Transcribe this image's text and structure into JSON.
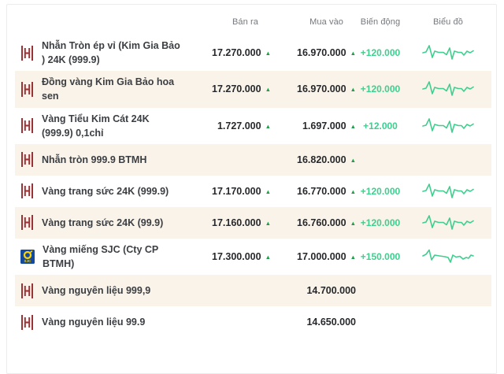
{
  "table": {
    "columns": {
      "sell": "Bán ra",
      "buy": "Mua vào",
      "change": "Biến động",
      "chart": "Biểu đồ"
    },
    "up_arrow": "▲",
    "rows": [
      {
        "name": "Nhẫn Tròn ép vỉ (Kim Gia Bảo ) 24K (999.9)",
        "icon": "btmh",
        "sell": "17.270.000",
        "sell_up": true,
        "buy": "16.970.000",
        "buy_up": true,
        "change": "+120.000",
        "chart": true,
        "chart_variant": "v1"
      },
      {
        "name": "Đồng vàng Kim Gia Bảo hoa sen",
        "icon": "btmh",
        "sell": "17.270.000",
        "sell_up": true,
        "buy": "16.970.000",
        "buy_up": true,
        "change": "+120.000",
        "chart": true,
        "chart_variant": "v1"
      },
      {
        "name": "Vàng Tiểu Kim Cát 24K (999.9) 0,1chỉ",
        "icon": "btmh",
        "sell": "1.727.000",
        "sell_up": true,
        "buy": "1.697.000",
        "buy_up": true,
        "change": "+12.000",
        "chart": true,
        "chart_variant": "v1"
      },
      {
        "name": "Nhẫn tròn 999.9 BTMH",
        "icon": "btmh",
        "sell": "",
        "sell_up": false,
        "buy": "16.820.000",
        "buy_up": true,
        "change": "",
        "chart": false,
        "chart_variant": ""
      },
      {
        "name": "Vàng trang sức 24K (999.9)",
        "icon": "btmh",
        "sell": "17.170.000",
        "sell_up": true,
        "buy": "16.770.000",
        "buy_up": true,
        "change": "+120.000",
        "chart": true,
        "chart_variant": "v1"
      },
      {
        "name": "Vàng trang sức 24K (99.9)",
        "icon": "btmh",
        "sell": "17.160.000",
        "sell_up": true,
        "buy": "16.760.000",
        "buy_up": true,
        "change": "+120.000",
        "chart": true,
        "chart_variant": "v1"
      },
      {
        "name": "Vàng miếng SJC (Cty CP BTMH)",
        "icon": "sjc",
        "sell": "17.300.000",
        "sell_up": true,
        "buy": "17.000.000",
        "buy_up": true,
        "change": "+150.000",
        "chart": true,
        "chart_variant": "v2"
      },
      {
        "name": "Vàng nguyên liệu 999,9",
        "icon": "btmh",
        "sell": "",
        "sell_up": false,
        "buy": "14.700.000",
        "buy_up": false,
        "change": "",
        "chart": false,
        "chart_variant": ""
      },
      {
        "name": "Vàng nguyên liệu 99.9",
        "icon": "btmh",
        "sell": "",
        "sell_up": false,
        "buy": "14.650.000",
        "buy_up": false,
        "change": "",
        "chart": false,
        "chart_variant": ""
      }
    ]
  },
  "sparklines": {
    "v1": "1,13 5,12 9,4 13,19 16,11 21,12.5 27,12.5 31,15.5 35,7 38,21 41,11 46,12.5 50,12.5 53,16 57,11 61,13 65,10.5",
    "v2": "1,12 5,10 9,4.5 12,17 16,11 22,12 29,13 33,14 36,20 39,11 43,13.5 48,12.5 52,16 56,14 59,15 62,11 65,12"
  },
  "colors": {
    "row_stripe": "#faf3e9",
    "sparkline_green": "#3ecf8e",
    "change_green": "#3ecf8e",
    "arrow_green": "#1f9e4a",
    "btmh_logo_red": "#9a3336",
    "sjc_blue": "#134a9f",
    "sjc_yellow": "#ffd400",
    "price_text": "#26282b",
    "header_text": "#75787d",
    "card_border": "#ececec"
  }
}
